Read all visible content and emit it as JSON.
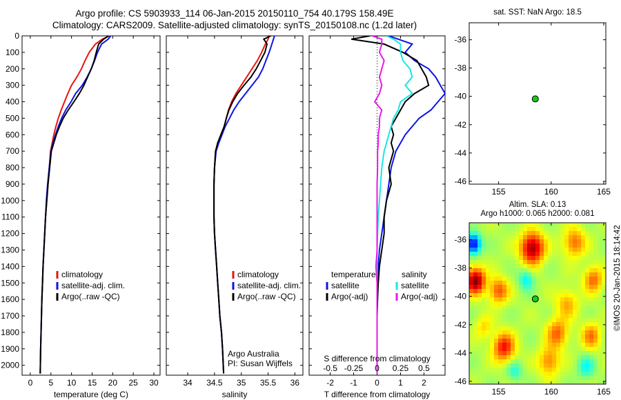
{
  "header": {
    "line1": "Argo profile: CS 5903933_114 06-Jan-2015 20150110_754 40.179S 158.49E",
    "line2": "Climatology: CARS2009. Satellite-adjusted climatology: synTS_20150108.nc (1.2d later)"
  },
  "colors": {
    "climatology": "#e8140c",
    "satellite": "#0a14e6",
    "argo": "#000000",
    "sal_satellite": "#19e6e6",
    "sal_argo": "#e619e6",
    "float_marker": "#19c819"
  },
  "chart_data": [
    {
      "type": "line",
      "name": "temperature-profile",
      "xlabel": "temperature (deg C)",
      "ylabel": "",
      "xlim": [
        -2,
        31.5
      ],
      "xticks": [
        0,
        5,
        10,
        15,
        20,
        25,
        30
      ],
      "ylim": [
        0,
        2060
      ],
      "yticks": [
        0,
        100,
        200,
        300,
        400,
        500,
        600,
        700,
        800,
        900,
        1000,
        1100,
        1200,
        1300,
        1400,
        1500,
        1600,
        1700,
        1800,
        1900,
        2000
      ],
      "y_reversed": true,
      "legend": [
        "climatology",
        "satellite-adj. clim.",
        "Argo(..raw -QC)"
      ],
      "series": [
        {
          "name": "climatology",
          "color": "#e8140c",
          "x": [
            19.2,
            17.5,
            15.8,
            14.3,
            13.3,
            12.4,
            11.3,
            10.0,
            9.1,
            8.3,
            7.5,
            6.8,
            6.2,
            5.7,
            5.3,
            4.9,
            4.6,
            4.3,
            4.0,
            3.7,
            3.5,
            3.3,
            3.1,
            2.95,
            2.8,
            2.7,
            2.6,
            2.5,
            2.4
          ],
          "y": [
            0,
            20,
            50,
            100,
            150,
            200,
            250,
            300,
            350,
            400,
            450,
            500,
            550,
            600,
            650,
            700,
            800,
            900,
            1000,
            1100,
            1200,
            1300,
            1400,
            1500,
            1600,
            1700,
            1800,
            1900,
            2050
          ]
        },
        {
          "name": "satellite-adj. clim.",
          "color": "#0a14e6",
          "x": [
            19.5,
            18.9,
            17.3,
            16.3,
            15.6,
            14.8,
            13.8,
            12.6,
            11.0,
            9.9,
            8.6,
            7.6,
            6.8,
            6.1,
            5.5,
            5.0,
            4.6,
            4.2,
            3.9,
            3.7,
            3.5,
            3.3,
            3.1,
            2.95,
            2.8,
            2.7,
            2.6,
            2.5,
            2.4
          ],
          "y": [
            0,
            20,
            50,
            100,
            150,
            200,
            250,
            300,
            350,
            400,
            450,
            500,
            550,
            600,
            650,
            700,
            800,
            900,
            1000,
            1100,
            1200,
            1300,
            1400,
            1500,
            1600,
            1700,
            1800,
            1900,
            2050
          ]
        },
        {
          "name": "Argo(..raw -QC)",
          "color": "#000000",
          "x": [
            19.0,
            17.8,
            16.6,
            16.0,
            15.5,
            14.8,
            13.9,
            13.0,
            11.9,
            10.6,
            9.2,
            8.0,
            7.1,
            6.3,
            5.7,
            5.1,
            4.7,
            4.3,
            4.0,
            3.7,
            3.5,
            3.3,
            3.1,
            2.95,
            2.8,
            2.7,
            2.6,
            2.5,
            2.4
          ],
          "y": [
            0,
            20,
            50,
            100,
            150,
            200,
            250,
            300,
            350,
            400,
            450,
            500,
            550,
            600,
            650,
            700,
            800,
            900,
            1000,
            1100,
            1200,
            1300,
            1400,
            1500,
            1600,
            1700,
            1800,
            1900,
            2050
          ]
        }
      ]
    },
    {
      "type": "line",
      "name": "salinity-profile",
      "xlabel": "salinity",
      "xlim": [
        33.6,
        36.15
      ],
      "xticks": [
        34,
        34.5,
        35,
        35.5,
        36
      ],
      "ylim": [
        0,
        2060
      ],
      "y_reversed": true,
      "legend": [
        "climatology",
        "satellite-adj. clim.",
        "Argo(..raw -QC)"
      ],
      "annotation": [
        "Argo Australia",
        "PI: Susan Wijffels"
      ],
      "series": [
        {
          "name": "climatology",
          "color": "#e8140c",
          "x": [
            35.52,
            35.5,
            35.45,
            35.38,
            35.3,
            35.2,
            35.1,
            35.0,
            34.9,
            34.82,
            34.76,
            34.72,
            34.68,
            34.62,
            34.56,
            34.52,
            34.5,
            34.49,
            34.49,
            34.49,
            34.5,
            34.52,
            34.54,
            34.56,
            34.58,
            34.6,
            34.63,
            34.65,
            34.67
          ],
          "y": [
            0,
            20,
            50,
            100,
            150,
            200,
            250,
            300,
            350,
            400,
            450,
            500,
            550,
            600,
            650,
            700,
            800,
            900,
            1000,
            1100,
            1200,
            1300,
            1400,
            1500,
            1600,
            1700,
            1800,
            1900,
            2050
          ]
        },
        {
          "name": "satellite-adj. clim.",
          "color": "#0a14e6",
          "x": [
            35.62,
            35.6,
            35.57,
            35.52,
            35.46,
            35.4,
            35.32,
            35.2,
            35.08,
            34.96,
            34.86,
            34.78,
            34.7,
            34.64,
            34.58,
            34.53,
            34.5,
            34.49,
            34.49,
            34.49,
            34.5,
            34.52,
            34.54,
            34.56,
            34.58,
            34.6,
            34.63,
            34.65,
            34.67
          ],
          "y": [
            0,
            20,
            50,
            100,
            150,
            200,
            250,
            300,
            350,
            400,
            450,
            500,
            550,
            600,
            650,
            700,
            800,
            900,
            1000,
            1100,
            1200,
            1300,
            1400,
            1500,
            1600,
            1700,
            1800,
            1900,
            2050
          ]
        },
        {
          "name": "Argo(..raw -QC)",
          "color": "#000000",
          "x": [
            35.55,
            35.42,
            35.48,
            35.44,
            35.36,
            35.28,
            35.18,
            35.05,
            34.93,
            34.84,
            34.77,
            34.72,
            34.68,
            34.62,
            34.56,
            34.52,
            34.5,
            34.49,
            34.49,
            34.49,
            34.5,
            34.52,
            34.54,
            34.56,
            34.58,
            34.6,
            34.63,
            34.65,
            34.67
          ],
          "y": [
            0,
            20,
            50,
            100,
            150,
            200,
            250,
            300,
            350,
            400,
            450,
            500,
            550,
            600,
            650,
            700,
            800,
            900,
            1000,
            1100,
            1200,
            1300,
            1400,
            1500,
            1600,
            1700,
            1800,
            1900,
            2050
          ]
        }
      ]
    },
    {
      "type": "line",
      "name": "difference-profile",
      "xlabel": "T difference from climatology",
      "top_axis_label": "S difference from climatology",
      "xlim": [
        -2.9,
        2.9
      ],
      "xticks": [
        -2,
        -1,
        0,
        1,
        2
      ],
      "top_ticks": [
        "-0.5",
        "-0.25",
        "0",
        "0.25",
        "0.5"
      ],
      "top_tick_values": [
        -2,
        -1,
        0,
        1,
        2
      ],
      "ylim": [
        0,
        2060
      ],
      "y_reversed": true,
      "legend": {
        "temperature": [
          "satellite",
          "Argo(-adj)"
        ],
        "salinity": [
          "satellite",
          "Argo(-adj)"
        ]
      },
      "legend_titles": [
        "temperature",
        "salinity"
      ],
      "series": [
        {
          "name": "T satellite",
          "color": "#0a14e6",
          "x": [
            0.5,
            0.9,
            1.5,
            1.2,
            1.6,
            2.2,
            2.5,
            2.7,
            2.9,
            2.6,
            2.3,
            1.8,
            1.5,
            1.2,
            1.0,
            0.8,
            0.6,
            0.5,
            0.4,
            0.3,
            0.2,
            0.1,
            0.05,
            0.02,
            0.01,
            0.0,
            0.0,
            0.0,
            0.0
          ],
          "y": [
            0,
            20,
            50,
            100,
            150,
            200,
            250,
            300,
            350,
            400,
            450,
            500,
            550,
            600,
            650,
            700,
            800,
            900,
            1000,
            1100,
            1200,
            1300,
            1400,
            1500,
            1600,
            1700,
            1800,
            1900,
            2050
          ]
        },
        {
          "name": "T Argo(-adj)",
          "color": "#000000",
          "x": [
            -0.3,
            -1.1,
            0.3,
            1.1,
            1.7,
            1.9,
            2.1,
            2.2,
            1.6,
            1.2,
            1.0,
            0.8,
            0.6,
            0.7,
            0.6,
            0.7,
            0.5,
            0.6,
            0.4,
            0.3,
            0.3,
            0.2,
            0.1,
            0.05,
            0.02,
            0.0,
            0.0,
            0.0,
            0.0
          ],
          "y": [
            0,
            20,
            50,
            100,
            150,
            200,
            250,
            300,
            350,
            400,
            450,
            500,
            550,
            600,
            650,
            700,
            800,
            900,
            1000,
            1100,
            1200,
            1300,
            1400,
            1500,
            1600,
            1700,
            1800,
            1900,
            2050
          ]
        },
        {
          "name": "S satellite",
          "color": "#19e6e6",
          "x": [
            0.4,
            0.7,
            1.0,
            1.0,
            1.1,
            1.4,
            1.5,
            1.2,
            1.5,
            1.0,
            0.9,
            0.7,
            0.6,
            0.5,
            0.4,
            0.3,
            0.2,
            0.15,
            0.1,
            0.05,
            0.02,
            0.0,
            0.0,
            0.0,
            0.0,
            0.0,
            0.0,
            0.0,
            0.0
          ],
          "y": [
            0,
            20,
            50,
            100,
            150,
            200,
            250,
            300,
            350,
            400,
            450,
            500,
            550,
            600,
            650,
            700,
            800,
            900,
            1000,
            1100,
            1200,
            1300,
            1400,
            1500,
            1600,
            1700,
            1800,
            1900,
            2050
          ]
        },
        {
          "name": "S Argo(-adj)",
          "color": "#e619e6",
          "x": [
            -0.2,
            0.2,
            0.2,
            0.1,
            0.3,
            0.2,
            0.1,
            0.2,
            0.1,
            -0.1,
            0.2,
            0.1,
            0.1,
            0.05,
            0.05,
            0.02,
            0.02,
            0.0,
            0.0,
            0.0,
            0.0,
            0.0,
            -0.05,
            0.0,
            0.0,
            0.0,
            0.0,
            0.0,
            0.0
          ],
          "y": [
            0,
            20,
            50,
            100,
            150,
            200,
            250,
            300,
            350,
            400,
            450,
            500,
            550,
            600,
            650,
            700,
            800,
            900,
            1000,
            1100,
            1200,
            1300,
            1400,
            1500,
            1600,
            1700,
            1800,
            1900,
            2050
          ]
        }
      ]
    },
    {
      "type": "scatter",
      "name": "sst-map",
      "title": "sat. SST: NaN Argo: 18.5",
      "xlim": [
        152.2,
        165.2
      ],
      "xticks": [
        155,
        160,
        165
      ],
      "ylim": [
        -46.2,
        -34.8
      ],
      "yticks": [
        -36,
        -38,
        -40,
        -42,
        -44,
        -46
      ],
      "points": [
        {
          "x": 158.49,
          "y": -40.179
        }
      ]
    },
    {
      "type": "heatmap",
      "name": "sla-map",
      "title": "Altim. SLA: 0.13",
      "subtitle": "Argo h1000: 0.065 h2000: 0.081",
      "xlim": [
        152.2,
        165.2
      ],
      "xticks": [
        155,
        160,
        165
      ],
      "ylim": [
        -46.2,
        -34.8
      ],
      "yticks": [
        -36,
        -38,
        -40,
        -42,
        -44,
        -46
      ],
      "points": [
        {
          "x": 158.49,
          "y": -40.179
        }
      ],
      "blobs": [
        {
          "x": 152.8,
          "y": -38.9,
          "r": 0.9,
          "v": 1.0
        },
        {
          "x": 158.2,
          "y": -36.6,
          "r": 1.1,
          "v": 0.95
        },
        {
          "x": 152.6,
          "y": -36.3,
          "r": 0.7,
          "v": -1.0
        },
        {
          "x": 155.5,
          "y": -43.6,
          "r": 1.0,
          "v": 0.7
        },
        {
          "x": 155.0,
          "y": -39.6,
          "r": 0.9,
          "v": 0.55
        },
        {
          "x": 157.6,
          "y": -38.8,
          "r": 0.7,
          "v": -0.4
        },
        {
          "x": 162.2,
          "y": -36.2,
          "r": 1.0,
          "v": 0.5
        },
        {
          "x": 164.0,
          "y": -38.8,
          "r": 0.9,
          "v": 0.5
        },
        {
          "x": 161.5,
          "y": -40.5,
          "r": 1.0,
          "v": 0.35
        },
        {
          "x": 160.6,
          "y": -42.6,
          "r": 1.0,
          "v": 0.5
        },
        {
          "x": 163.8,
          "y": -42.8,
          "r": 0.9,
          "v": 0.45
        },
        {
          "x": 159.8,
          "y": -44.6,
          "r": 1.0,
          "v": 0.45
        },
        {
          "x": 163.3,
          "y": -45.0,
          "r": 0.8,
          "v": -0.35
        },
        {
          "x": 153.6,
          "y": -42.2,
          "r": 0.8,
          "v": 0.25
        },
        {
          "x": 156.5,
          "y": -45.3,
          "r": 0.7,
          "v": -0.3
        }
      ]
    }
  ],
  "watermark": "©IMOS 20-Jan-2015 18:14:42"
}
